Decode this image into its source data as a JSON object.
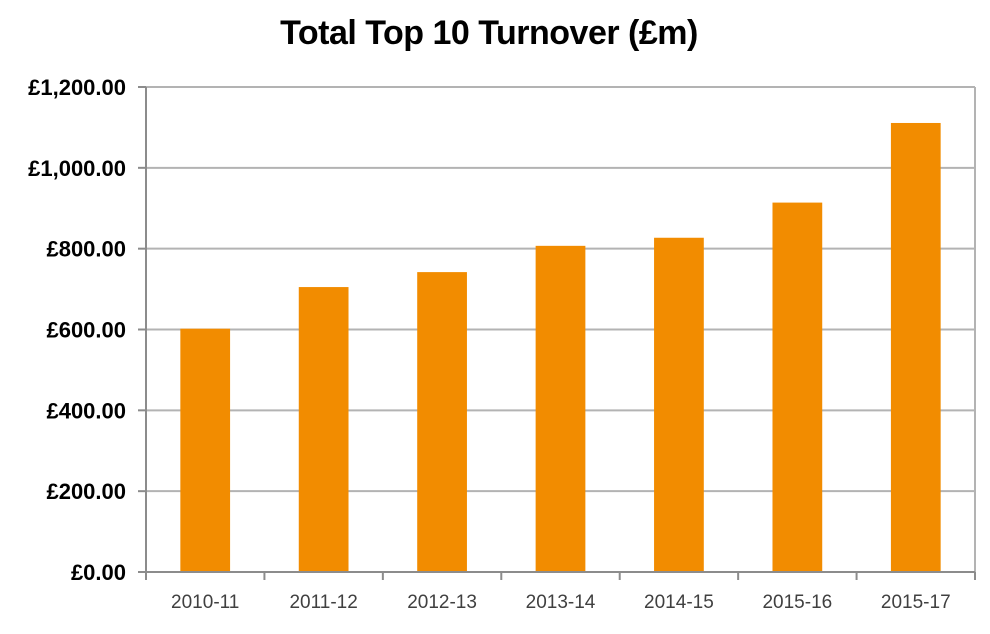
{
  "chart_data": {
    "type": "bar",
    "title": "Total Top 10 Turnover (£m)",
    "xlabel": "",
    "ylabel": "",
    "categories": [
      "2010-11",
      "2011-12",
      "2012-13",
      "2013-14",
      "2014-15",
      "2015-16",
      "2015-17"
    ],
    "values": [
      602,
      705,
      742,
      807,
      827,
      914,
      1111
    ],
    "ylim": [
      0,
      1200
    ],
    "yticks": [
      0,
      200,
      400,
      600,
      800,
      1000,
      1200
    ],
    "ytick_labels": [
      "£0.00",
      "£200.00",
      "£400.00",
      "£600.00",
      "£800.00",
      "£1,000.00",
      "£1,200.00"
    ],
    "grid": true,
    "legend": "none",
    "colors": {
      "bar": "#F28C00",
      "grid": "#B3B3B3",
      "axis": "#8C8C8C",
      "text": "#000000",
      "xtick_text": "#404040"
    }
  }
}
